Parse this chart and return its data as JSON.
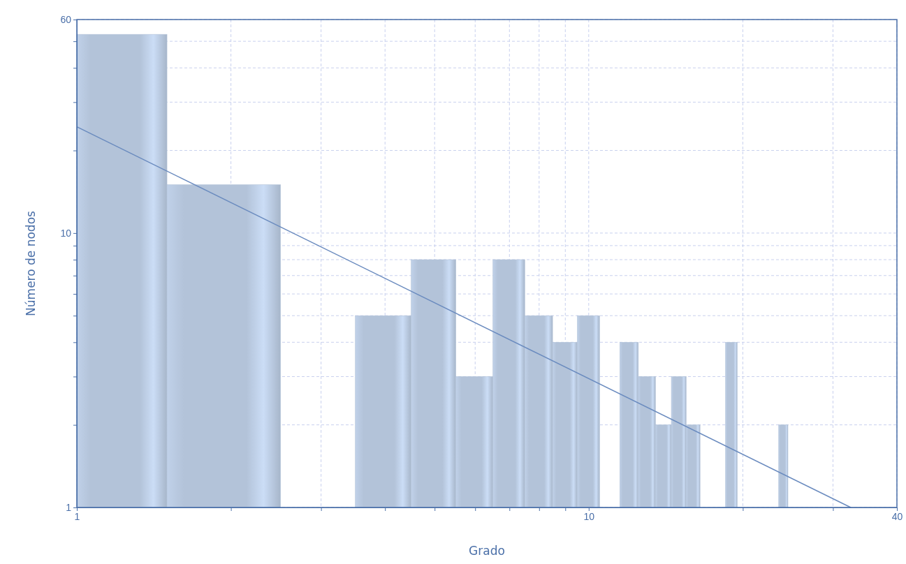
{
  "chart_data": {
    "type": "histogram",
    "xlabel": "Grado",
    "ylabel": "Número de nodos",
    "log": "xy",
    "grid": true,
    "bins": [
      1,
      1.5,
      2.5,
      3.5,
      4.5,
      5.5,
      6.5,
      7.5,
      8.5,
      9.5,
      10.5,
      11.5,
      12.5,
      13.5,
      14.5,
      15.5,
      16.5,
      18.5,
      19.5,
      23.5,
      24.5
    ],
    "values": [
      53,
      15,
      null,
      5,
      8,
      3,
      8,
      5,
      4,
      5,
      null,
      4,
      3,
      2,
      3,
      2,
      null,
      4,
      null,
      2
    ],
    "color": "#b3c3d9",
    "series": [
      {
        "type": "line",
        "x": [
          1,
          32.5
        ],
        "values": [
          24.4,
          1
        ],
        "color": "#6a8bbf"
      }
    ],
    "xlim": [
      1,
      40
    ],
    "ylim": [
      1,
      60
    ],
    "xticks": [
      1,
      {
        "value": 2,
        "label": null
      },
      {
        "value": 3,
        "label": null
      },
      {
        "value": 4,
        "label": null
      },
      {
        "value": 5,
        "label": null
      },
      {
        "value": 6,
        "label": null
      },
      {
        "value": 7,
        "label": null
      },
      {
        "value": 8,
        "label": null
      },
      {
        "value": 9,
        "label": null
      },
      10,
      {
        "value": 20,
        "label": null
      },
      {
        "value": 30,
        "label": null
      },
      40
    ],
    "yticks": [
      1,
      {
        "value": 2,
        "label": null
      },
      {
        "value": 3,
        "label": null
      },
      {
        "value": 4,
        "label": null
      },
      {
        "value": 5,
        "label": null
      },
      {
        "value": 6,
        "label": null
      },
      {
        "value": 7,
        "label": null
      },
      {
        "value": 8,
        "label": null
      },
      {
        "value": 9,
        "label": null
      },
      10,
      {
        "value": 20,
        "label": null
      },
      {
        "value": 30,
        "label": null
      },
      {
        "value": 40,
        "label": null
      },
      {
        "value": 50,
        "label": null
      },
      60
    ]
  }
}
